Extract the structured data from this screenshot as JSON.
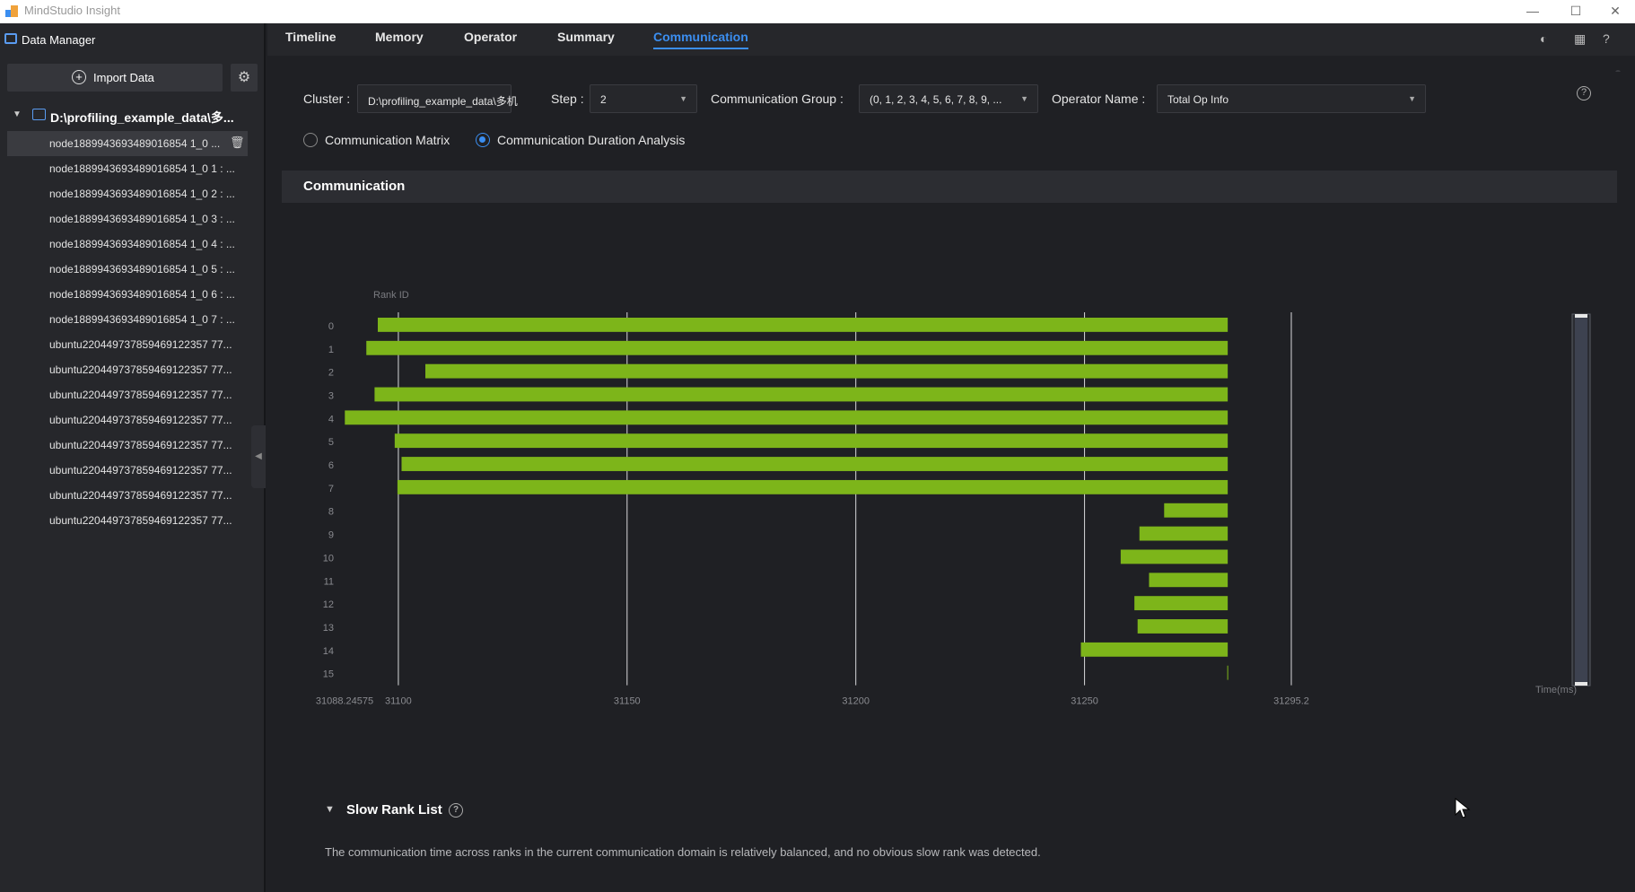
{
  "titlebar": {
    "title": "MindStudio Insight",
    "minimize_icon": "—",
    "maximize_icon": "☐",
    "close_icon": "✕"
  },
  "sidebar": {
    "header": "Data Manager",
    "import_label": "Import Data",
    "project": "D:\\profiling_example_data\\多...",
    "files": [
      "node1889943693489016854 1_0 ...",
      "node1889943693489016854 1_0 1 : ...",
      "node1889943693489016854 1_0 2 : ...",
      "node1889943693489016854 1_0 3 : ...",
      "node1889943693489016854 1_0 4 : ...",
      "node1889943693489016854 1_0 5 : ...",
      "node1889943693489016854 1_0 6 : ...",
      "node1889943693489016854 1_0 7 : ...",
      "ubuntu220449737859469122357 77...",
      "ubuntu220449737859469122357 77...",
      "ubuntu220449737859469122357 77...",
      "ubuntu220449737859469122357 77...",
      "ubuntu220449737859469122357 77...",
      "ubuntu220449737859469122357 77...",
      "ubuntu220449737859469122357 77...",
      "ubuntu220449737859469122357 77..."
    ]
  },
  "tabs": [
    "Timeline",
    "Memory",
    "Operator",
    "Summary",
    "Communication"
  ],
  "active_tab": "Communication",
  "filters": {
    "cluster_label": "Cluster :",
    "cluster_value": "D:\\profiling_example_data\\多机",
    "step_label": "Step :",
    "step_value": "2",
    "group_label": "Communication Group :",
    "group_value": "(0, 1, 2, 3, 4, 5, 6, 7, 8, 9, ...",
    "op_label": "Operator Name :",
    "op_value": "Total Op Info"
  },
  "radios": {
    "matrix": "Communication Matrix",
    "duration": "Communication Duration Analysis"
  },
  "section_title": "Communication",
  "chart_data": {
    "type": "bar",
    "orientation": "horizontal",
    "ylabel": "Rank ID",
    "xlabel": "Time(ms)",
    "xlim": [
      31088.24575,
      31295.2
    ],
    "xticks": [
      31100,
      31150,
      31200,
      31250
    ],
    "xtick_labels": [
      "31088.24575",
      "31100",
      "31150",
      "31200",
      "31250",
      "31295.2"
    ],
    "categories": [
      "0",
      "1",
      "2",
      "3",
      "4",
      "5",
      "6",
      "7",
      "8",
      "9",
      "10",
      "11",
      "12",
      "13",
      "14",
      "15"
    ],
    "bars": [
      {
        "rank": "0",
        "start": 31095.5,
        "end": 31281.3
      },
      {
        "rank": "1",
        "start": 31093.0,
        "end": 31281.3
      },
      {
        "rank": "2",
        "start": 31105.9,
        "end": 31281.3
      },
      {
        "rank": "3",
        "start": 31094.8,
        "end": 31281.3
      },
      {
        "rank": "4",
        "start": 31088.3,
        "end": 31281.3
      },
      {
        "rank": "5",
        "start": 31099.2,
        "end": 31281.3
      },
      {
        "rank": "6",
        "start": 31100.7,
        "end": 31281.3
      },
      {
        "rank": "7",
        "start": 31099.8,
        "end": 31281.3
      },
      {
        "rank": "8",
        "start": 31267.4,
        "end": 31281.3
      },
      {
        "rank": "9",
        "start": 31262.0,
        "end": 31281.3
      },
      {
        "rank": "10",
        "start": 31257.9,
        "end": 31281.3
      },
      {
        "rank": "11",
        "start": 31264.1,
        "end": 31281.3
      },
      {
        "rank": "12",
        "start": 31260.9,
        "end": 31281.3
      },
      {
        "rank": "13",
        "start": 31261.6,
        "end": 31281.3
      },
      {
        "rank": "14",
        "start": 31249.2,
        "end": 31281.3
      },
      {
        "rank": "15",
        "start": 31281.2,
        "end": 31281.3
      }
    ],
    "bar_color": "#7db51a"
  },
  "slow_rank": {
    "title": "Slow Rank List",
    "message": "The communication time across ranks in the current communication domain is relatively balanced, and no obvious slow rank was detected."
  }
}
